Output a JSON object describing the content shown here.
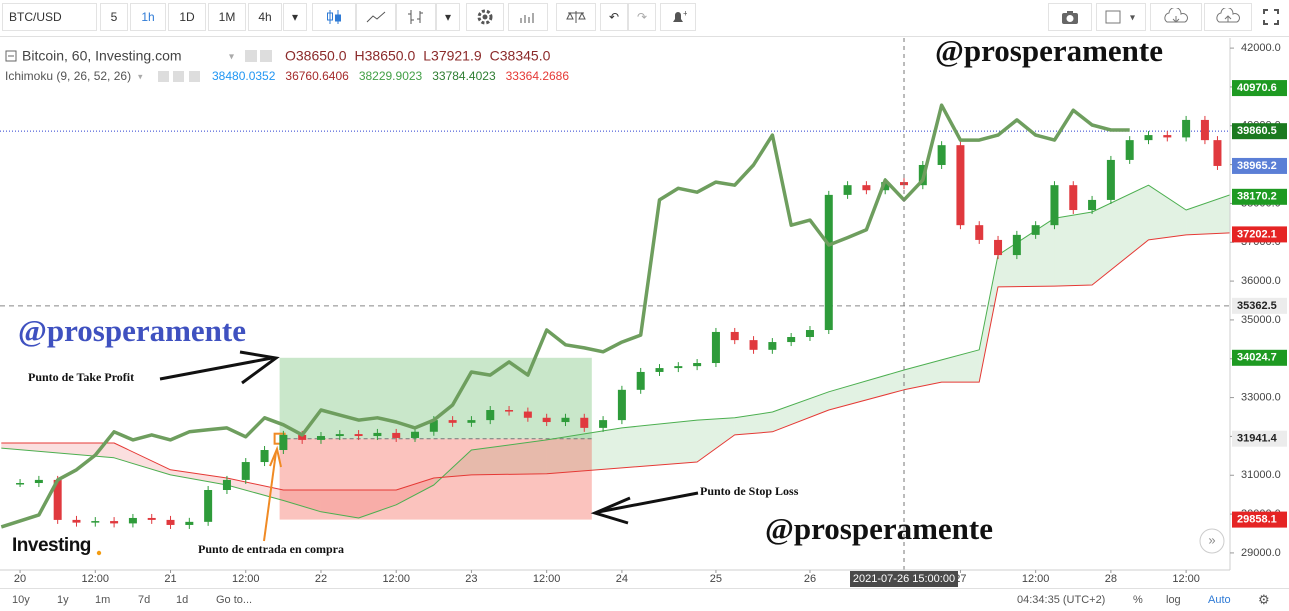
{
  "toolbar": {
    "symbol": "BTC/USD",
    "intervals": [
      "5",
      "1h",
      "1D",
      "1M",
      "4h"
    ],
    "active_interval": 1
  },
  "legend": {
    "title": "Bitcoin, 60, Investing.com",
    "ohlc": [
      {
        "prefix": "O",
        "value": "38650.0"
      },
      {
        "prefix": "H",
        "value": "38650.0"
      },
      {
        "prefix": "L",
        "value": "37921.9"
      },
      {
        "prefix": "C",
        "value": "38345.0"
      }
    ],
    "indicator": "Ichimoku (9, 26, 52, 26)",
    "indicator_values": [
      {
        "value": 38480.0352,
        "color": "#2196f3"
      },
      {
        "value": 36760.6406,
        "color": "#a52a2a"
      },
      {
        "value": 38229.9023,
        "color": "#43a047"
      },
      {
        "value": 33784.4023,
        "color": "#2e7d32"
      },
      {
        "value": 33364.2686,
        "color": "#e53935"
      }
    ]
  },
  "chart_data": {
    "type": "candlestick",
    "xlim": [
      -3.2,
      193
    ],
    "ylim": [
      28560,
      42260
    ],
    "grid": false,
    "xticks": [
      {
        "value": 0,
        "label": "20"
      },
      {
        "value": 12,
        "label": "12:00"
      },
      {
        "value": 24,
        "label": "21"
      },
      {
        "value": 36,
        "label": "12:00"
      },
      {
        "value": 48,
        "label": "22"
      },
      {
        "value": 60,
        "label": "12:00"
      },
      {
        "value": 72,
        "label": "23"
      },
      {
        "value": 84,
        "label": "12:00"
      },
      {
        "value": 96,
        "label": "24"
      },
      {
        "value": 111,
        "label": "25"
      },
      {
        "value": 126,
        "label": "26"
      },
      {
        "value": 150,
        "label": "27"
      },
      {
        "value": 162,
        "label": "12:00"
      },
      {
        "value": 174,
        "label": "28"
      },
      {
        "value": 186,
        "label": "12:00"
      }
    ],
    "yticks": [
      {
        "value": 29000,
        "label": "29000.0"
      },
      {
        "value": 30000,
        "label": "30000.0"
      },
      {
        "value": 31000,
        "label": "31000.0"
      },
      {
        "value": 32000,
        "label": "32000.0"
      },
      {
        "value": 33000,
        "label": "33000.0"
      },
      {
        "value": 34000,
        "label": "34000.0"
      },
      {
        "value": 35000,
        "label": "35000.0"
      },
      {
        "value": 36000,
        "label": "36000.0"
      },
      {
        "value": 37000,
        "label": "37000.0"
      },
      {
        "value": 38000,
        "label": "38000.0"
      },
      {
        "value": 39000,
        "label": "39000.0"
      },
      {
        "value": 40000,
        "label": "40000.0"
      },
      {
        "value": 41000,
        "label": "41000.0"
      },
      {
        "value": 42000,
        "label": "42000.0"
      }
    ],
    "candles": {
      "up_color": "#2e9b3a",
      "down_color": "#e0393e",
      "x": [
        0,
        3,
        6,
        9,
        12,
        15,
        18,
        21,
        24,
        27,
        30,
        33,
        36,
        39,
        42,
        45,
        48,
        51,
        54,
        57,
        60,
        63,
        66,
        69,
        72,
        75,
        78,
        81,
        84,
        87,
        90,
        93,
        96,
        99,
        102,
        105,
        108,
        111,
        114,
        117,
        120,
        123,
        126,
        129,
        132,
        135,
        138,
        141,
        144,
        147,
        150,
        153,
        156,
        159,
        162,
        165,
        168,
        171,
        174,
        177,
        180,
        183,
        186,
        189,
        191
      ],
      "values": [
        30800,
        30880,
        29850,
        29780,
        29820,
        29760,
        29900,
        29850,
        29720,
        29800,
        30620,
        30880,
        31340,
        31650,
        32040,
        31910,
        32010,
        32060,
        32010,
        32090,
        31960,
        32120,
        32420,
        32350,
        32420,
        32680,
        32640,
        32480,
        32370,
        32480,
        32220,
        32420,
        33200,
        33660,
        33760,
        33810,
        33890,
        34690,
        34480,
        34230,
        34430,
        34560,
        34740,
        38220,
        38470,
        38340,
        38550,
        38470,
        38990,
        39500,
        37440,
        37060,
        36670,
        37190,
        37440,
        38470,
        37830,
        38090,
        39120,
        39630,
        39760,
        39700,
        40150,
        39630,
        38965.2
      ]
    },
    "series": [
      {
        "color": "#6e9e5e",
        "width": 3.5,
        "x": [
          -3,
          3,
          6,
          9,
          12,
          15,
          18,
          21,
          24,
          27,
          30,
          33,
          36,
          39,
          42,
          45,
          48,
          51,
          54,
          57,
          60,
          63,
          66,
          69,
          72,
          75,
          78,
          81,
          84,
          87,
          90,
          93,
          96,
          99,
          102,
          105,
          108,
          111,
          114,
          117,
          120,
          123,
          126,
          129,
          132,
          135,
          138,
          141,
          144,
          147,
          150,
          153,
          156,
          159,
          162,
          165,
          168,
          171,
          174,
          177
        ],
        "values": [
          29670,
          29980,
          30880,
          31140,
          31520,
          32120,
          31910,
          32040,
          31910,
          32120,
          32170,
          32220,
          31990,
          32480,
          32300,
          32040,
          32680,
          32550,
          32420,
          32480,
          32370,
          32220,
          32420,
          32810,
          33660,
          33580,
          33920,
          33580,
          34740,
          34360,
          34280,
          34180,
          34430,
          34610,
          38090,
          38390,
          38290,
          38550,
          38470,
          38990,
          39760,
          37440,
          37570,
          36930,
          37120,
          37320,
          38600,
          38090,
          38600,
          40530,
          39630,
          39630,
          39760,
          40150,
          39760,
          39630,
          40400,
          40020,
          39890,
          39890
        ]
      },
      {
        "color": "#4caf50",
        "width": 1,
        "x": [
          -3,
          15,
          24,
          33,
          42,
          48,
          54,
          60,
          66,
          72,
          84,
          96,
          108,
          114,
          120,
          129,
          141,
          147,
          153,
          156,
          165,
          171,
          180,
          186,
          193
        ],
        "values": [
          31700,
          31450,
          31010,
          30750,
          30350,
          30060,
          29900,
          30240,
          30750,
          31650,
          31910,
          32220,
          32420,
          32480,
          32630,
          33150,
          33710,
          33970,
          34230,
          36670,
          37620,
          37780,
          38470,
          37830,
          38220
        ]
      },
      {
        "color": "#e53935",
        "width": 1,
        "x": [
          -3,
          15,
          24,
          33,
          42,
          48,
          54,
          60,
          66,
          72,
          84,
          96,
          108,
          114,
          120,
          129,
          141,
          147,
          153,
          156,
          165,
          171,
          180,
          186,
          193
        ],
        "values": [
          31830,
          31830,
          31140,
          30930,
          30620,
          30620,
          30620,
          30620,
          30930,
          31010,
          31040,
          31190,
          31340,
          32040,
          32120,
          32680,
          33200,
          33400,
          33400,
          35850,
          35870,
          35900,
          37060,
          37190,
          37240
        ]
      }
    ],
    "cloud": {
      "up_color": "rgba(76,175,80,0.16)",
      "down_color": "rgba(229,57,53,0.16)"
    },
    "position": {
      "x": [
        41.4,
        91.2
      ],
      "take_profit": 34024.7,
      "entry": 31941.4,
      "stop_loss": 29858.1,
      "profit_color": "rgba(76,175,80,0.3)",
      "loss_color": "rgba(244,67,54,0.32)"
    },
    "price_tags": [
      {
        "value": 40970.6,
        "color": "#1e9a22",
        "text_color": "#ffffff"
      },
      {
        "value": 39860.5,
        "color": "#1b7a1f",
        "text_color": "#ffffff",
        "line_color": "#2a3fd0"
      },
      {
        "value": 38965.2,
        "color": "#5b7fd6",
        "text_color": "#ffffff"
      },
      {
        "value": 38170.2,
        "color": "#1e9a22",
        "text_color": "#ffffff"
      },
      {
        "value": 37202.1,
        "color": "#e52424",
        "text_color": "#ffffff"
      },
      {
        "value": 35362.5,
        "color": "#ececec",
        "text_color": "#222222",
        "line_color": "#888888"
      },
      {
        "value": 34024.7,
        "color": "#1e9a22",
        "text_color": "#ffffff"
      },
      {
        "value": 31941.4,
        "color": "#ececec",
        "text_color": "#222222"
      },
      {
        "value": 29858.1,
        "color": "#e52424",
        "text_color": "#ffffff"
      }
    ],
    "crosshair": {
      "value": 141,
      "label": "2021-07-26 15:00:00"
    },
    "annotations": {
      "watermarks": [
        "@prosperamente",
        "@prosperamente",
        "@prosperamente"
      ],
      "take_profit": "Punto de Take Profit",
      "stop_loss": "Punto de Stop Loss",
      "entry": "Punto de entrada en compra",
      "logo": "Investing"
    }
  },
  "footer": {
    "ranges": [
      "10y",
      "1y",
      "1m",
      "7d",
      "1d"
    ],
    "goto": "Go to...",
    "time": "04:34:35 (UTC+2)",
    "options": [
      "%",
      "log",
      "Auto"
    ]
  }
}
